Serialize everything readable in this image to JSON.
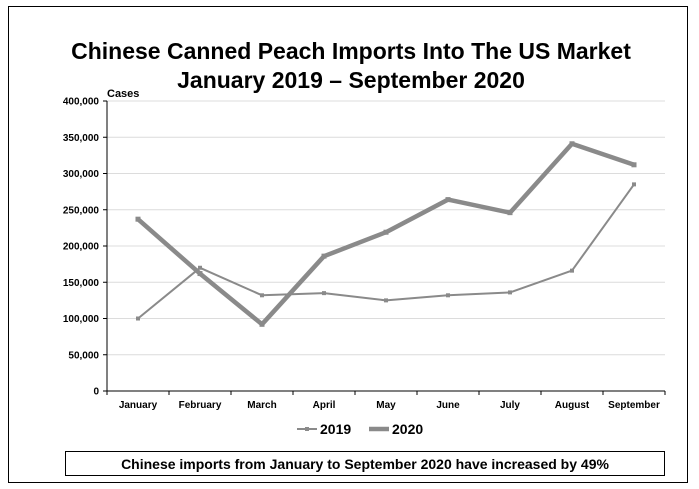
{
  "chart_data": {
    "type": "line",
    "title_line1": "Chinese Canned Peach Imports Into The US Market",
    "title_line2": "January 2019 – September 2020",
    "ylabel": "Cases",
    "xlabel": "",
    "categories": [
      "January",
      "February",
      "March",
      "April",
      "May",
      "June",
      "July",
      "August",
      "September"
    ],
    "ylim": [
      0,
      400000
    ],
    "yticks": [
      0,
      50000,
      100000,
      150000,
      200000,
      250000,
      300000,
      350000,
      400000
    ],
    "ytick_labels": [
      "0",
      "50,000",
      "100,000",
      "150,000",
      "200,000",
      "250,000",
      "300,000",
      "350,000",
      "400,000"
    ],
    "grid": true,
    "legend_position": "bottom",
    "series": [
      {
        "name": "2019",
        "values": [
          100000,
          170000,
          132000,
          135000,
          125000,
          132000,
          136000,
          166000,
          285000
        ],
        "color": "#8a8a8a",
        "width": 2
      },
      {
        "name": "2020",
        "values": [
          237000,
          162000,
          92000,
          186000,
          219000,
          264000,
          246000,
          341000,
          312000
        ],
        "color": "#8a8a8a",
        "width": 4.5
      }
    ]
  },
  "note": "Chinese imports from January to September 2020 have increased by 49%"
}
